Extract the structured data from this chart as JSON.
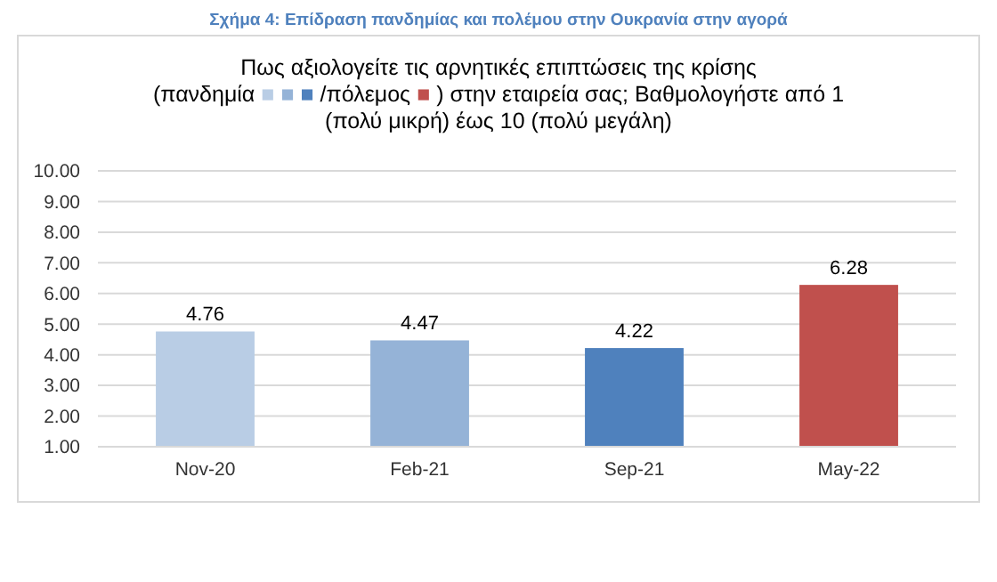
{
  "chart_data": {
    "type": "bar",
    "title": "Σχήμα 4: Επίδραση πανδημίας και πολέμου στην Ουκρανία στην αγορά",
    "subtitle": "Πως αξιολογείτε τις αρνητικές επιπτώσεις της κρίσης\n(πανδημία ■ ■ ■ /πόλεμος ■ ) στην εταιρεία σας; Βαθμολογήστε από 1\n(πολύ μικρή) έως 10 (πολύ μεγάλη)",
    "categories": [
      "Nov-20",
      "Feb-21",
      "Sep-21",
      "May-22"
    ],
    "values": [
      4.76,
      4.47,
      4.22,
      6.28
    ],
    "colors": [
      "#b9cde5",
      "#95b3d7",
      "#4f81bd",
      "#c0504d"
    ],
    "data_labels": true,
    "ylim": [
      1,
      10
    ],
    "yticks": [
      {
        "value": 1,
        "label": "1.00"
      },
      {
        "value": 2,
        "label": "2.00"
      },
      {
        "value": 3,
        "label": "3.00"
      },
      {
        "value": 4,
        "label": "4.00"
      },
      {
        "value": 5,
        "label": "5.00"
      },
      {
        "value": 6,
        "label": "6.00"
      },
      {
        "value": 7,
        "label": "7.00"
      },
      {
        "value": 8,
        "label": "8.00"
      },
      {
        "value": 9,
        "label": "9.00"
      },
      {
        "value": 10,
        "label": "10.00"
      }
    ],
    "grid": true
  }
}
